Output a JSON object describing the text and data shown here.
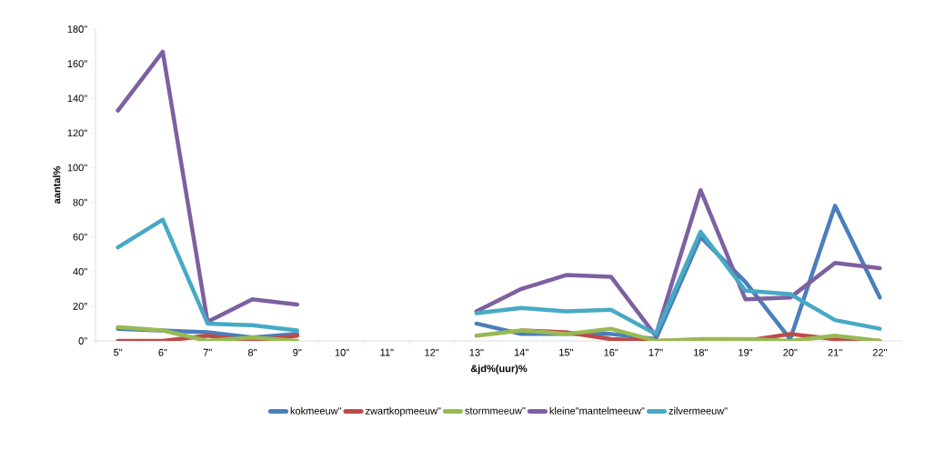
{
  "chart_data": {
    "type": "line",
    "xlabel": "&jd%(uur)%",
    "ylabel": "aantal%",
    "categories": [
      "5\"",
      "6\"",
      "7\"",
      "8\"",
      "9\"",
      "10\"",
      "11\"",
      "12\"",
      "13\"",
      "14\"",
      "15\"",
      "16\"",
      "17\"",
      "18\"",
      "19\"",
      "20\"",
      "21\"",
      "22\""
    ],
    "series": [
      {
        "name": "kokmeeuw\"",
        "color": "#4a7ebb",
        "values": [
          7,
          6,
          5,
          2,
          4,
          null,
          null,
          null,
          10,
          4,
          4,
          4,
          1,
          60,
          34,
          1,
          78,
          25
        ]
      },
      {
        "name": "zwartkopmeeuw\"",
        "color": "#be4b48",
        "values": [
          0,
          0,
          3,
          0,
          3,
          null,
          null,
          null,
          null,
          6,
          5,
          1,
          0,
          0,
          0,
          4,
          1,
          0
        ]
      },
      {
        "name": "stormmeeuw\"",
        "color": "#98b954",
        "values": [
          8,
          6,
          0,
          2,
          0,
          null,
          null,
          null,
          3,
          6,
          4,
          7,
          0,
          1,
          1,
          0,
          3,
          0
        ]
      },
      {
        "name": "kleine\"mantelmeeuw\"",
        "color": "#7d60a0",
        "values": [
          133,
          167,
          11,
          24,
          21,
          null,
          null,
          null,
          17,
          30,
          38,
          37,
          3,
          87,
          24,
          25,
          45,
          42
        ]
      },
      {
        "name": "zilvermeeuw\"",
        "color": "#46aac5",
        "values": [
          54,
          70,
          10,
          9,
          6,
          null,
          null,
          null,
          16,
          19,
          17,
          18,
          4,
          63,
          29,
          27,
          12,
          7
        ]
      }
    ],
    "ylim": [
      0,
      180
    ],
    "yticks": [
      {
        "value": 0,
        "label": "0\""
      },
      {
        "value": 20,
        "label": "20\""
      },
      {
        "value": 40,
        "label": "40\""
      },
      {
        "value": 60,
        "label": "60\""
      },
      {
        "value": 80,
        "label": "80\""
      },
      {
        "value": 100,
        "label": "100\""
      },
      {
        "value": 120,
        "label": "120\""
      },
      {
        "value": 140,
        "label": "140\""
      },
      {
        "value": 160,
        "label": "160\""
      },
      {
        "value": 180,
        "label": "180\""
      }
    ],
    "legend": "bottom",
    "grid": false,
    "marker": "none",
    "line_style": "solid"
  }
}
